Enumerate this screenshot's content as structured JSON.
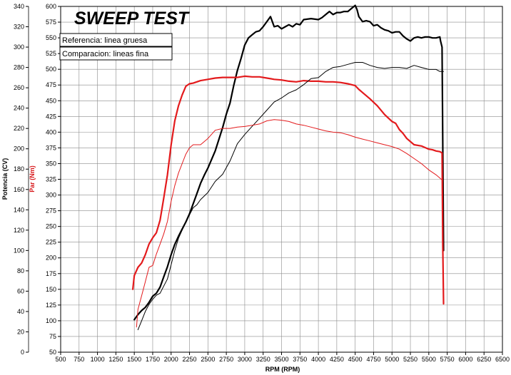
{
  "chart_data": {
    "type": "line",
    "title": "SWEEP TEST",
    "xlabel": "RPM (RPM)",
    "ylabel_power": "Potencia (CV)",
    "ylabel_torque": "Par (Nm)",
    "legend": [
      "Referencia: linea gruesa",
      "Comparacion: lineas fina"
    ],
    "xlim": [
      500,
      6500
    ],
    "x_ticks": [
      "500",
      "750",
      "1000",
      "1250",
      "1500",
      "1750",
      "2000",
      "2250",
      "2500",
      "2750",
      "3000",
      "3250",
      "3500",
      "3750",
      "4000",
      "4250",
      "4500",
      "4750",
      "5000",
      "5250",
      "5500",
      "5750",
      "6000",
      "6250",
      "6500"
    ],
    "power_ylim": [
      0,
      340
    ],
    "power_ticks": [
      "0",
      "20",
      "40",
      "60",
      "80",
      "100",
      "120",
      "140",
      "160",
      "180",
      "200",
      "220",
      "240",
      "260",
      "280",
      "300",
      "320",
      "340"
    ],
    "torque_ylim": [
      50,
      600
    ],
    "torque_ticks": [
      "50",
      "75",
      "100",
      "125",
      "150",
      "175",
      "200",
      "225",
      "250",
      "275",
      "300",
      "325",
      "350",
      "375",
      "400",
      "425",
      "450",
      "475",
      "500",
      "525",
      "550",
      "575",
      "600"
    ],
    "grid": true,
    "colors": {
      "power": "#000000",
      "torque": "#e31a1c"
    },
    "series": [
      {
        "name": "Referencia: linea gruesa",
        "quantity": "power",
        "color": "#000000",
        "width": 2.2,
        "x": [
          1500,
          1550,
          1600,
          1650,
          1700,
          1750,
          1800,
          1850,
          1900,
          1950,
          2000,
          2050,
          2100,
          2150,
          2200,
          2250,
          2300,
          2350,
          2400,
          2450,
          2500,
          2600,
          2700,
          2750,
          2800,
          2850,
          2900,
          2950,
          3000,
          3050,
          3100,
          3150,
          3200,
          3250,
          3300,
          3350,
          3375,
          3400,
          3450,
          3500,
          3550,
          3600,
          3650,
          3700,
          3750,
          3800,
          3900,
          4000,
          4050,
          4100,
          4150,
          4200,
          4250,
          4300,
          4350,
          4400,
          4450,
          4500,
          4525,
          4550,
          4600,
          4650,
          4700,
          4750,
          4800,
          4850,
          4900,
          4950,
          5000,
          5050,
          5100,
          5150,
          5200,
          5250,
          5300,
          5350,
          5400,
          5450,
          5500,
          5550,
          5600,
          5650,
          5660,
          5680,
          5700
        ],
        "y": [
          32,
          37,
          41,
          44,
          49,
          55,
          58,
          64,
          74,
          84,
          96,
          106,
          114,
          121,
          128,
          136,
          146,
          156,
          166,
          174,
          181,
          198,
          221,
          234,
          245,
          262,
          277,
          289,
          302,
          309,
          312,
          315,
          316,
          320,
          325,
          330,
          325,
          320,
          321,
          318,
          320,
          322,
          320,
          323,
          322,
          327,
          328,
          327,
          329,
          332,
          335,
          332,
          334,
          334,
          335,
          335,
          338,
          341,
          337,
          330,
          325,
          326,
          325,
          321,
          322,
          319,
          317,
          316,
          314,
          315,
          315,
          311,
          308,
          306,
          309,
          310,
          309,
          310,
          310,
          309,
          309,
          310,
          306,
          300,
          100
        ]
      },
      {
        "name": "Referencia: linea gruesa",
        "quantity": "torque",
        "color": "#e31a1c",
        "width": 2.2,
        "x": [
          1480,
          1500,
          1550,
          1600,
          1650,
          1700,
          1750,
          1800,
          1850,
          1900,
          1950,
          2000,
          2050,
          2100,
          2150,
          2200,
          2250,
          2300,
          2400,
          2500,
          2600,
          2700,
          2800,
          2900,
          3000,
          3100,
          3200,
          3300,
          3400,
          3500,
          3600,
          3700,
          3800,
          3900,
          4000,
          4100,
          4200,
          4300,
          4400,
          4500,
          4550,
          4600,
          4700,
          4800,
          4900,
          5000,
          5050,
          5100,
          5150,
          5200,
          5250,
          5300,
          5400,
          5500,
          5550,
          5600,
          5650,
          5680,
          5690,
          5700
        ],
        "y": [
          150,
          172,
          185,
          192,
          205,
          222,
          232,
          240,
          260,
          295,
          332,
          380,
          418,
          442,
          459,
          473,
          477,
          478,
          482,
          484,
          486,
          487,
          487,
          487,
          489,
          488,
          488,
          486,
          484,
          483,
          481,
          480,
          482,
          481,
          481,
          480,
          480,
          479,
          477,
          474,
          468,
          463,
          453,
          442,
          428,
          417,
          414,
          404,
          398,
          390,
          385,
          380,
          378,
          373,
          372,
          370,
          369,
          367,
          220,
          127
        ]
      },
      {
        "name": "Comparacion: lineas fina",
        "quantity": "power",
        "color": "#000000",
        "width": 1,
        "x": [
          1550,
          1600,
          1650,
          1700,
          1750,
          1800,
          1850,
          1900,
          1950,
          2000,
          2050,
          2100,
          2150,
          2200,
          2250,
          2300,
          2350,
          2400,
          2500,
          2600,
          2700,
          2800,
          2900,
          3000,
          3100,
          3200,
          3300,
          3400,
          3500,
          3600,
          3700,
          3800,
          3900,
          4000,
          4100,
          4200,
          4300,
          4400,
          4500,
          4600,
          4700,
          4800,
          4900,
          5000,
          5100,
          5200,
          5300,
          5400,
          5500,
          5600,
          5650,
          5700
        ],
        "y": [
          22,
          31,
          40,
          47,
          52,
          56,
          58,
          65,
          72,
          86,
          100,
          112,
          120,
          128,
          135,
          142,
          145,
          150,
          157,
          168,
          175,
          188,
          205,
          214,
          222,
          230,
          238,
          246,
          250,
          255,
          258,
          263,
          269,
          270,
          276,
          280,
          281,
          283,
          285,
          285,
          282,
          280,
          279,
          280,
          280,
          279,
          282,
          280,
          278,
          278,
          276,
          276
        ]
      },
      {
        "name": "Comparacion: lineas fina",
        "quantity": "torque",
        "color": "#e31a1c",
        "width": 1,
        "x": [
          1530,
          1550,
          1600,
          1650,
          1700,
          1750,
          1800,
          1850,
          1900,
          1950,
          2000,
          2050,
          2100,
          2150,
          2200,
          2250,
          2300,
          2350,
          2400,
          2450,
          2500,
          2600,
          2700,
          2800,
          2900,
          3000,
          3100,
          3200,
          3300,
          3400,
          3500,
          3600,
          3700,
          3800,
          3900,
          4000,
          4100,
          4200,
          4300,
          4400,
          4500,
          4600,
          4700,
          4800,
          4900,
          5000,
          5100,
          5200,
          5300,
          5400,
          5500,
          5600,
          5650,
          5690
        ],
        "y": [
          90,
          118,
          140,
          162,
          185,
          188,
          206,
          222,
          238,
          258,
          290,
          315,
          335,
          350,
          365,
          375,
          380,
          380,
          380,
          385,
          390,
          403,
          406,
          406,
          408,
          409,
          411,
          413,
          418,
          420,
          419,
          417,
          413,
          411,
          408,
          405,
          402,
          400,
          399,
          396,
          392,
          389,
          386,
          383,
          380,
          377,
          373,
          366,
          358,
          350,
          340,
          332,
          327,
          323
        ]
      }
    ]
  }
}
